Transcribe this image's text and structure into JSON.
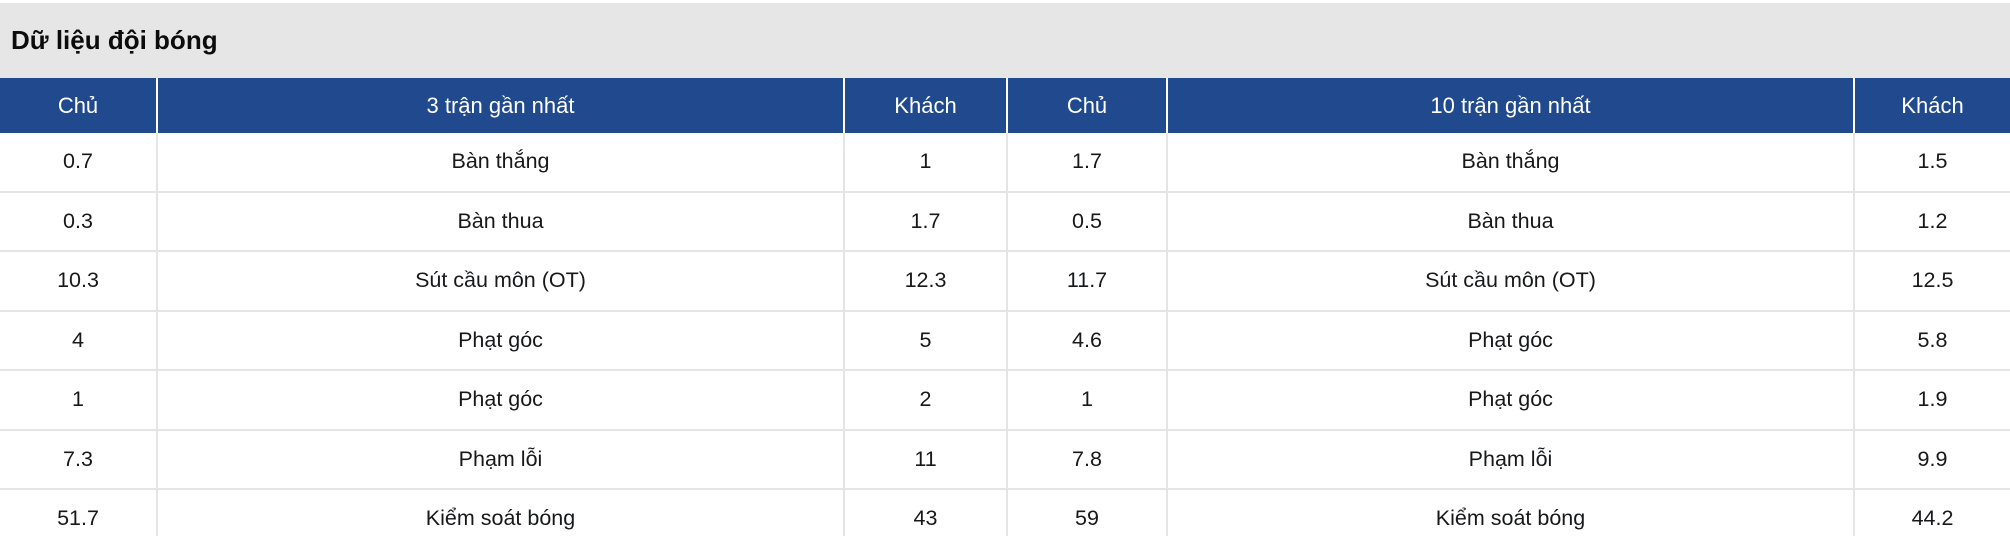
{
  "title": "Dữ liệu đội bóng",
  "colors": {
    "header_bg": "#204a8d",
    "header_text": "#ffffff",
    "title_bg": "#e6e6e6",
    "divider": "#e5e5e5",
    "body_text": "#17181a"
  },
  "table": {
    "headers": [
      "Chủ",
      "3 trận gần nhất",
      "Khách",
      "Chủ",
      "10 trận gần nhất",
      "Khách"
    ],
    "rows": [
      [
        "0.7",
        "Bàn thắng",
        "1",
        "1.7",
        "Bàn thắng",
        "1.5"
      ],
      [
        "0.3",
        "Bàn thua",
        "1.7",
        "0.5",
        "Bàn thua",
        "1.2"
      ],
      [
        "10.3",
        "Sút cầu môn (OT)",
        "12.3",
        "11.7",
        "Sút cầu môn (OT)",
        "12.5"
      ],
      [
        "4",
        "Phạt góc",
        "5",
        "4.6",
        "Phạt góc",
        "5.8"
      ],
      [
        "1",
        "Phạt góc",
        "2",
        "1",
        "Phạt góc",
        "1.9"
      ],
      [
        "7.3",
        "Phạm lỗi",
        "11",
        "7.8",
        "Phạm lỗi",
        "9.9"
      ],
      [
        "51.7",
        "Kiểm soát bóng",
        "43",
        "59",
        "Kiểm soát bóng",
        "44.2"
      ]
    ]
  }
}
